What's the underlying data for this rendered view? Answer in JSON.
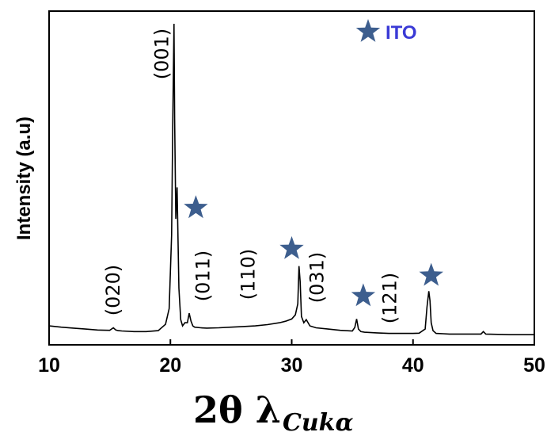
{
  "colors": {
    "line": "#000000",
    "star": "#3d5e8e",
    "legend_text": "#3b3bd6"
  },
  "legend": {
    "marker_icon": "star-icon",
    "text": "ITO"
  },
  "chart_data": {
    "type": "line",
    "title": "",
    "xlabel_main": "2θ λ",
    "xlabel_sub": "Cukα",
    "ylabel": "Intensity (a.u)",
    "xlim": [
      10,
      50
    ],
    "xticks": [
      10,
      20,
      30,
      40,
      50
    ],
    "x_tick_labels": [
      "10",
      "20",
      "30",
      "40",
      "50"
    ],
    "y_ticks_shown": false,
    "grid": false,
    "legend_position": "top-right",
    "series": [
      {
        "x": [
          10,
          11,
          12,
          13,
          14,
          15,
          15.3,
          15.5,
          15.7,
          16,
          17,
          18,
          19,
          19.6,
          19.9,
          20.1,
          20.2,
          20.3,
          20.35,
          20.45,
          20.55,
          20.7,
          20.85,
          21.0,
          21.2,
          21.4,
          21.55,
          21.7,
          21.85,
          22,
          22.5,
          23,
          24,
          25,
          26,
          27,
          28,
          29,
          29.5,
          30,
          30.3,
          30.5,
          30.6,
          30.7,
          30.8,
          31,
          31.2,
          31.5,
          32,
          33,
          34,
          35,
          35.2,
          35.35,
          35.5,
          35.7,
          36,
          37,
          38,
          39,
          40,
          40.5,
          41,
          41.15,
          41.3,
          41.4,
          41.5,
          41.65,
          41.9,
          42.5,
          43,
          44,
          45,
          45.6,
          45.8,
          46,
          47,
          48,
          49,
          50
        ],
        "y": [
          0.04,
          0.036,
          0.033,
          0.03,
          0.027,
          0.026,
          0.034,
          0.027,
          0.025,
          0.024,
          0.022,
          0.022,
          0.025,
          0.045,
          0.095,
          0.33,
          0.7,
          1.0,
          0.7,
          0.38,
          0.48,
          0.16,
          0.06,
          0.04,
          0.05,
          0.05,
          0.08,
          0.055,
          0.04,
          0.036,
          0.034,
          0.033,
          0.034,
          0.036,
          0.038,
          0.04,
          0.044,
          0.05,
          0.055,
          0.062,
          0.075,
          0.11,
          0.23,
          0.18,
          0.07,
          0.05,
          0.06,
          0.04,
          0.034,
          0.03,
          0.026,
          0.024,
          0.035,
          0.062,
          0.03,
          0.022,
          0.02,
          0.018,
          0.016,
          0.016,
          0.016,
          0.017,
          0.03,
          0.1,
          0.15,
          0.12,
          0.05,
          0.025,
          0.016,
          0.015,
          0.014,
          0.014,
          0.014,
          0.014,
          0.022,
          0.014,
          0.013,
          0.012,
          0.012,
          0.012
        ]
      }
    ],
    "peak_labels": [
      {
        "text": "(020)",
        "x": 15.3
      },
      {
        "text": "(001)",
        "x": 19.3
      },
      {
        "text": "(011)",
        "x": 22.7
      },
      {
        "text": "(110)",
        "x": 26.4
      },
      {
        "text": "(031)",
        "x": 32.1
      },
      {
        "text": "(121)",
        "x": 38.1
      }
    ],
    "star_markers": [
      {
        "x": 22.1,
        "y": 0.415
      },
      {
        "x": 30.0,
        "y": 0.285
      },
      {
        "x": 35.9,
        "y": 0.135
      },
      {
        "x": 41.5,
        "y": 0.2
      }
    ]
  }
}
